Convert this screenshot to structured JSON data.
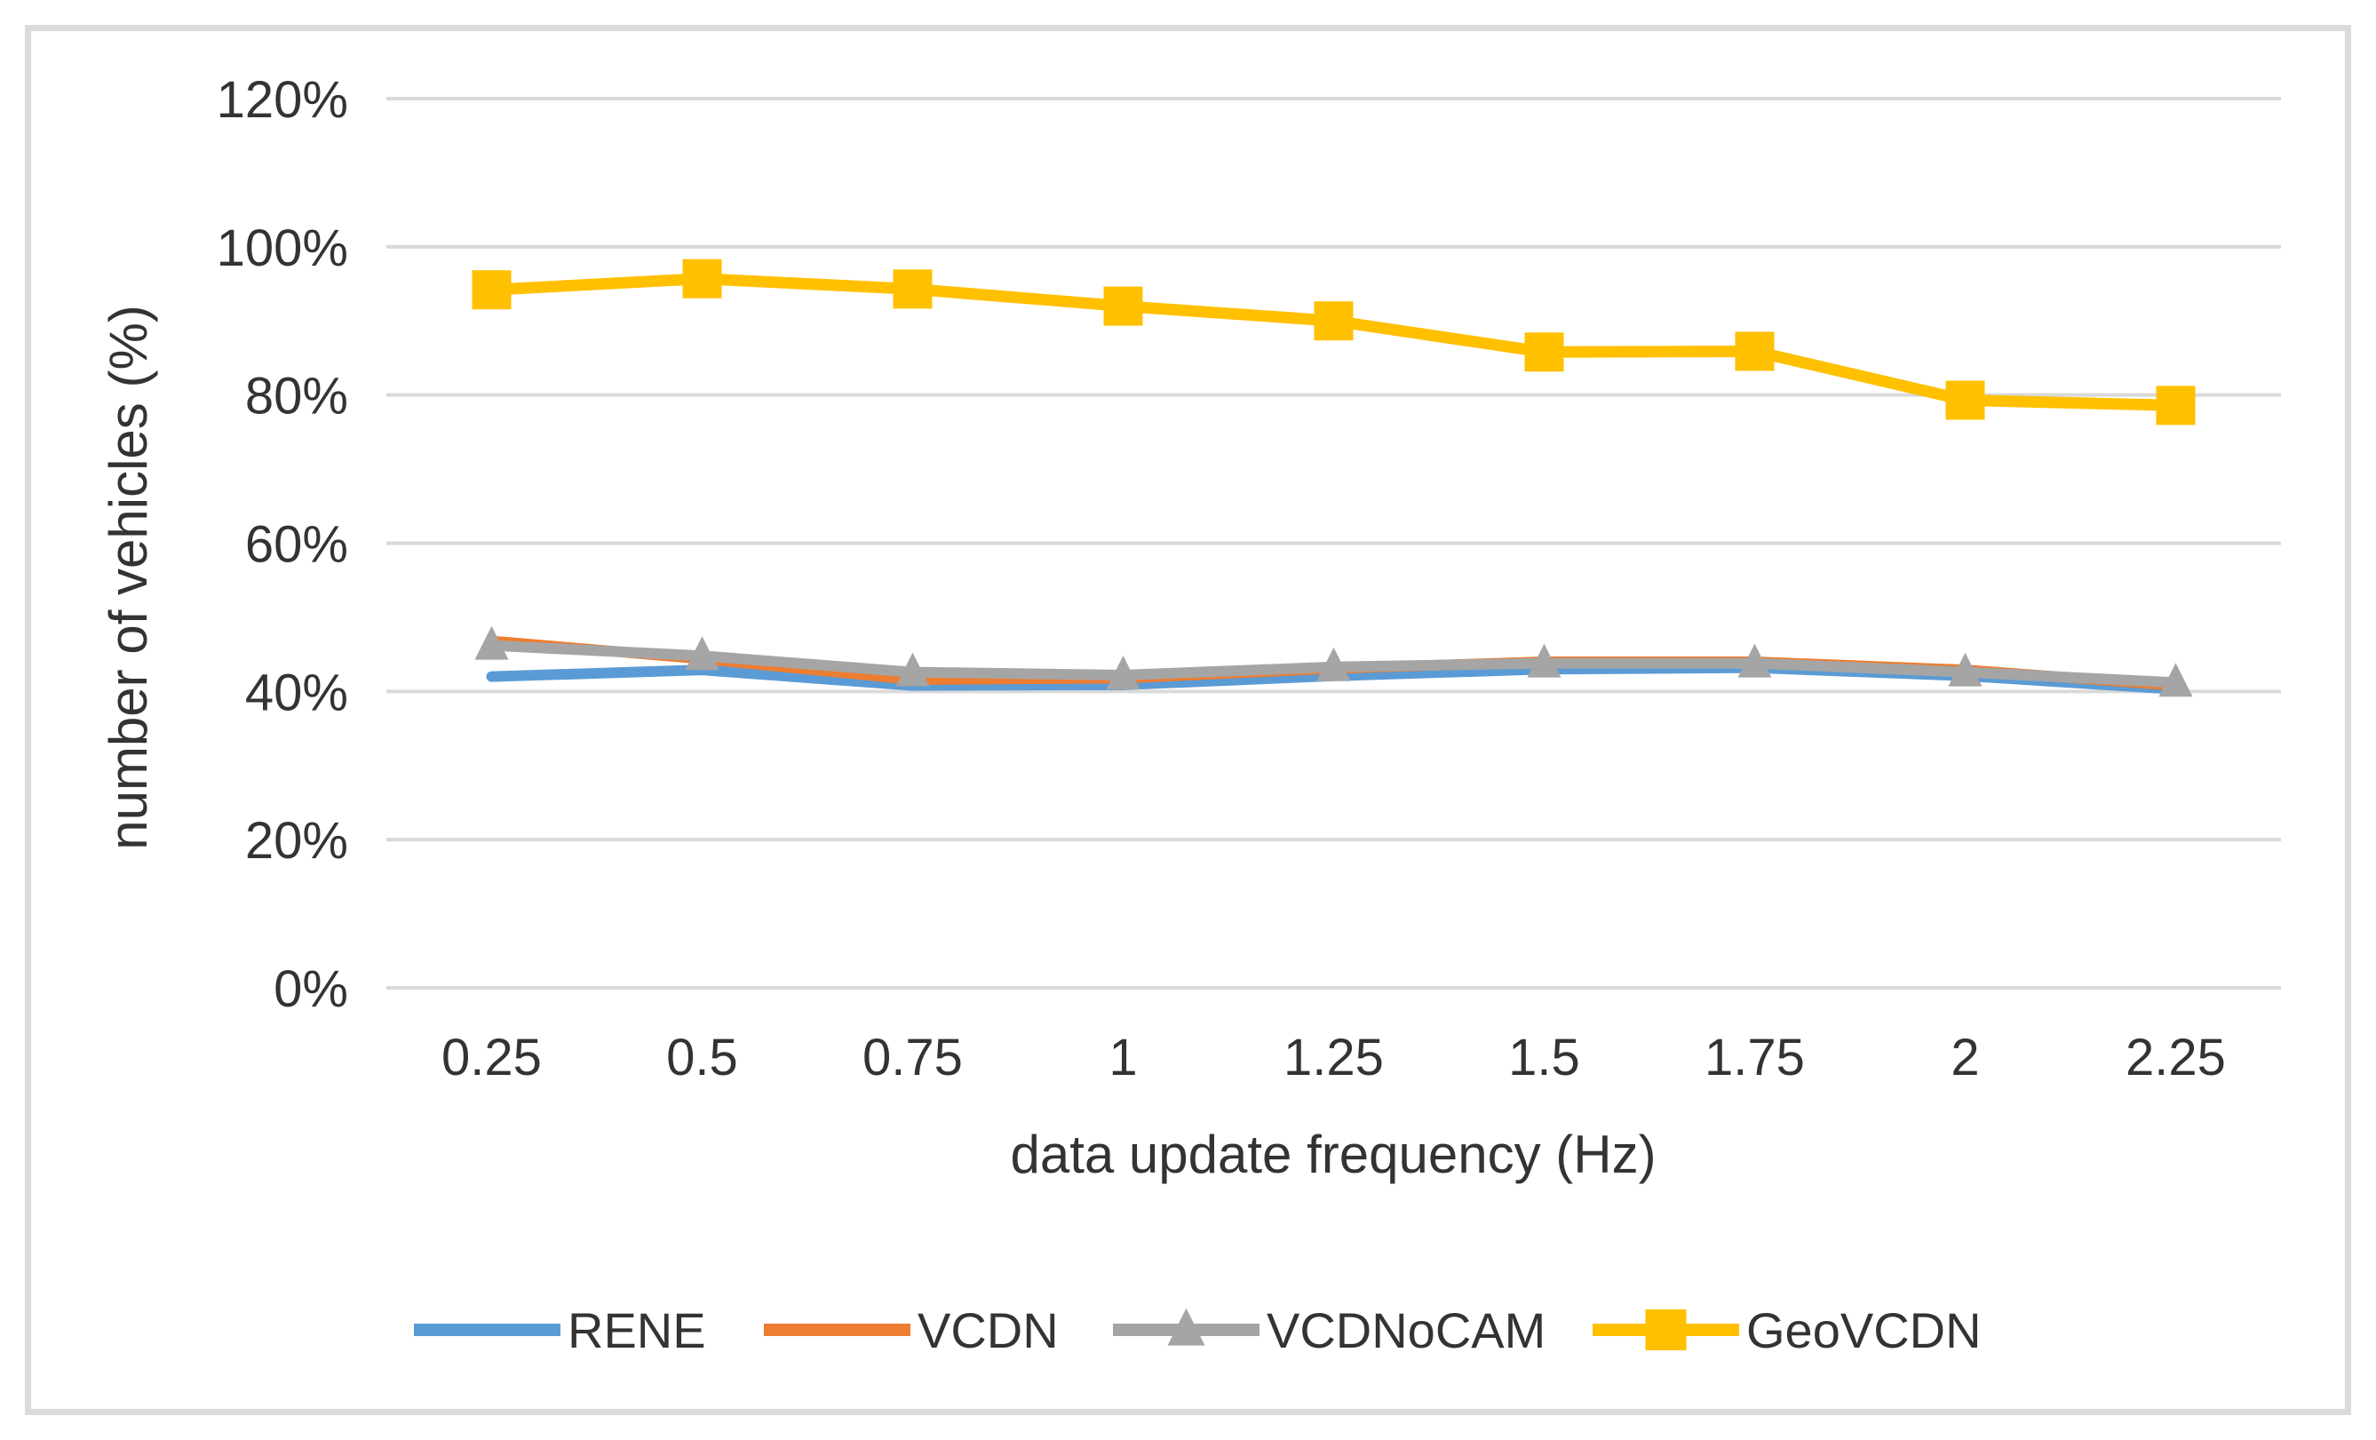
{
  "figure": {
    "background": "#ffffff",
    "border_color": "#dcdcdc"
  },
  "chart_data": {
    "type": "line",
    "title": "",
    "xlabel": "data update frequency (Hz)",
    "ylabel": "number of vehicles (%)",
    "ylim": [
      0,
      120
    ],
    "y_ticks_percent": [
      0,
      20,
      40,
      60,
      80,
      100,
      120
    ],
    "y_tick_labels": [
      "0%",
      "20%",
      "40%",
      "60%",
      "80%",
      "100%",
      "120%"
    ],
    "categories": [
      0.25,
      0.5,
      0.75,
      1,
      1.25,
      1.5,
      1.75,
      2,
      2.25
    ],
    "x_tick_labels": [
      "0.25",
      "0.5",
      "0.75",
      "1",
      "1.25",
      "1.5",
      "1.75",
      "2",
      "2.25"
    ],
    "grid": "horizontal",
    "gridline_color": "#d9d9d9",
    "legend_position": "bottom",
    "series": [
      {
        "name": "RENE",
        "color": "#5B9BD5",
        "marker": "none",
        "values": [
          42.0,
          42.9,
          40.8,
          40.9,
          42.1,
          43.0,
          43.2,
          42.1,
          40.3
        ]
      },
      {
        "name": "VCDN",
        "color": "#ED7D31",
        "marker": "none",
        "values": [
          46.8,
          44.4,
          41.6,
          41.8,
          43.1,
          44.0,
          44.0,
          42.9,
          40.8
        ]
      },
      {
        "name": "VCDNoCAM",
        "color": "#A5A5A5",
        "marker": "triangle",
        "values": [
          46.2,
          44.8,
          42.6,
          42.2,
          43.3,
          43.8,
          43.8,
          42.6,
          41.2
        ]
      },
      {
        "name": "GeoVCDN",
        "color": "#FFC000",
        "marker": "square",
        "values": [
          94.2,
          95.7,
          94.3,
          92.0,
          90.0,
          85.8,
          85.9,
          79.3,
          78.6
        ]
      }
    ]
  }
}
